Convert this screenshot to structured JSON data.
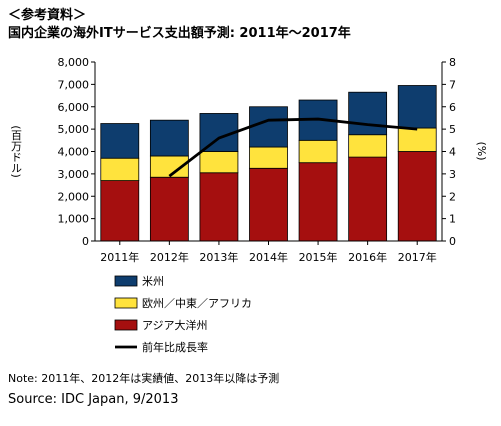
{
  "heading": "＜参考資料＞",
  "note": "Note: 2011年、2012年は実績値、2013年以降は予測",
  "source": "Source: IDC Japan, 9/2013",
  "chart_data": {
    "type": "bar",
    "title": "国内企業の海外ITサービス支出額予測: 2011年～2017年",
    "stacked": true,
    "categories": [
      "2011年",
      "2012年",
      "2013年",
      "2014年",
      "2015年",
      "2016年",
      "2017年"
    ],
    "series": [
      {
        "name": "アジア大洋州",
        "color": "#A50F0F",
        "values": [
          2700,
          2850,
          3050,
          3250,
          3500,
          3750,
          4000
        ]
      },
      {
        "name": "欧州／中東／アフリカ",
        "color": "#FFE33D",
        "values": [
          1000,
          950,
          950,
          950,
          1000,
          1000,
          1050
        ]
      },
      {
        "name": "米州",
        "color": "#0E3D6E",
        "values": [
          1550,
          1600,
          1700,
          1800,
          1800,
          1900,
          1900
        ]
      }
    ],
    "line_series": {
      "name": "前年比成長率",
      "color": "#000000",
      "axis": "right",
      "values": [
        null,
        2.9,
        4.6,
        5.4,
        5.45,
        5.2,
        5.0
      ]
    },
    "ylabel": "(百万ドル)",
    "ylim": [
      0,
      8000
    ],
    "yticks": [
      "0",
      "1,000",
      "2,000",
      "3,000",
      "4,000",
      "5,000",
      "6,000",
      "7,000",
      "8,000"
    ],
    "y2label": "(%)",
    "y2lim": [
      0,
      8
    ],
    "y2ticks": [
      "0",
      "1",
      "2",
      "3",
      "4",
      "5",
      "6",
      "7",
      "8"
    ],
    "legend_order": [
      "米州",
      "欧州／中東／アフリカ",
      "アジア大洋州",
      "前年比成長率"
    ],
    "legend_position": "bottom-left",
    "grid": false
  }
}
